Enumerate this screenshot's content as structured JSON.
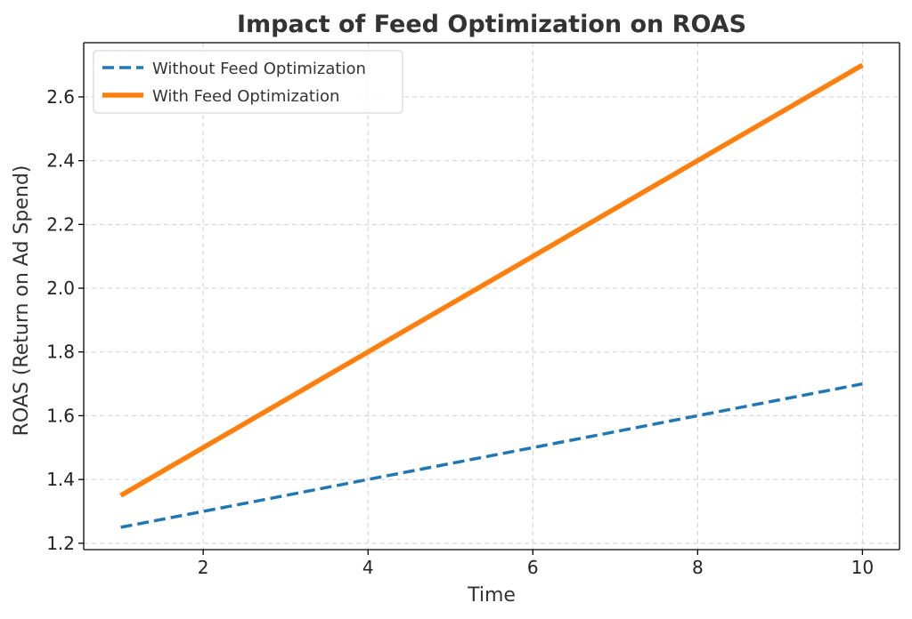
{
  "chart_data": {
    "type": "line",
    "title": "Impact of Feed Optimization on ROAS",
    "xlabel": "Time",
    "ylabel": "ROAS (Return on Ad Spend)",
    "xlim": [
      0.55,
      10.45
    ],
    "ylim": [
      1.18,
      2.77
    ],
    "xticks": [
      2,
      4,
      6,
      8,
      10
    ],
    "yticks": [
      1.2,
      1.4,
      1.6,
      1.8,
      2.0,
      2.2,
      2.4,
      2.6
    ],
    "ytick_labels": [
      "1.2",
      "1.4",
      "1.6",
      "1.8",
      "2.0",
      "2.2",
      "2.4",
      "2.6"
    ],
    "grid": true,
    "legend_position": "top-left",
    "x": [
      1,
      2,
      3,
      4,
      5,
      6,
      7,
      8,
      9,
      10
    ],
    "series": [
      {
        "name": "Without Feed Optimization",
        "values": [
          1.25,
          1.3,
          1.35,
          1.4,
          1.45,
          1.5,
          1.55,
          1.6,
          1.65,
          1.7
        ],
        "color": "#1f77b4",
        "style": "dashed"
      },
      {
        "name": "With Feed Optimization",
        "values": [
          1.35,
          1.5,
          1.65,
          1.8,
          1.95,
          2.1,
          2.25,
          2.4,
          2.55,
          2.7
        ],
        "color": "#ff7f0e",
        "style": "solid"
      }
    ]
  }
}
